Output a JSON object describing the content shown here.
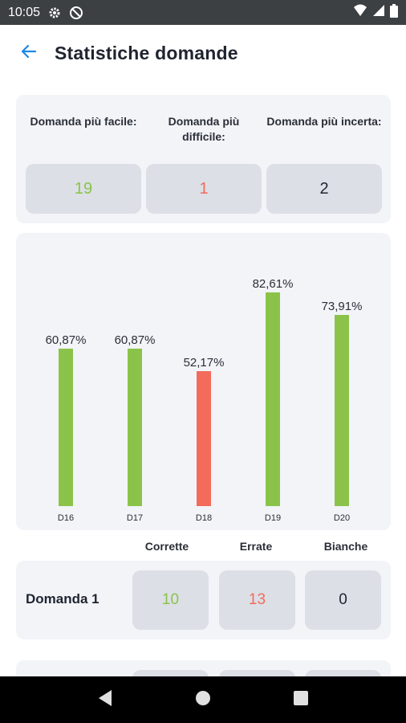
{
  "status_bar": {
    "time": "10:05",
    "left_icons": [
      "gear-icon",
      "no-sync-icon"
    ],
    "right_icons": [
      "wifi-icon",
      "signal-icon",
      "battery-icon"
    ]
  },
  "header": {
    "title": "Statistiche domande",
    "back_icon": "arrow-left-icon",
    "accent_color": "#1e88e5"
  },
  "summary": {
    "items": [
      {
        "label": "Domanda più facile:",
        "value": "19",
        "color": "#8bc34a"
      },
      {
        "label": "Domanda più difficile:",
        "value": "1",
        "color": "#f26b5b"
      },
      {
        "label": "Domanda più incerta:",
        "value": "2",
        "color": "#1f2430"
      }
    ]
  },
  "chart_data": {
    "type": "bar",
    "categories": [
      "D16",
      "D17",
      "D18",
      "D19",
      "D20"
    ],
    "values": [
      60.87,
      60.87,
      52.17,
      82.61,
      73.91
    ],
    "value_labels": [
      "60,87%",
      "60,87%",
      "52,17%",
      "82,61%",
      "73,91%"
    ],
    "bar_colors": [
      "#8bc34a",
      "#8bc34a",
      "#f26b5b",
      "#8bc34a",
      "#8bc34a"
    ],
    "ylim": [
      0,
      100
    ],
    "grid": false,
    "title": "",
    "xlabel": "",
    "ylabel": ""
  },
  "stats_table": {
    "headers": [
      "Corrette",
      "Errate",
      "Bianche"
    ],
    "rows": [
      {
        "label": "Domanda 1",
        "correct": "10",
        "wrong": "13",
        "blank": "0"
      }
    ],
    "colors": {
      "correct": "#8bc34a",
      "wrong": "#f26b5b",
      "blank": "#1f2430"
    }
  },
  "nav_bar": {
    "buttons": [
      "back-triangle-icon",
      "home-circle-icon",
      "recents-square-icon"
    ]
  }
}
